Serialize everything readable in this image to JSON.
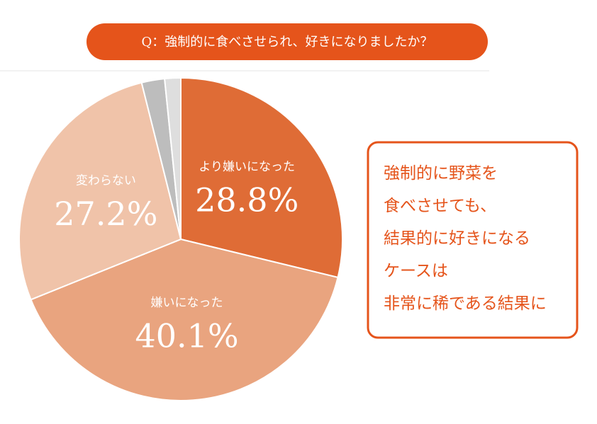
{
  "chart_data": {
    "type": "pie",
    "title": "Q：強制的に食べさせられ、好きになりましたか？",
    "categories": [
      "より嫌いになった",
      "嫌いになった",
      "変わらない",
      null,
      null
    ],
    "values": [
      28.8,
      40.1,
      27.2,
      2.3,
      1.6
    ],
    "value_labels": [
      "28.8%",
      "40.1%",
      "27.2%",
      null,
      null
    ],
    "colors": [
      "#df6c36",
      "#e9a47f",
      "#f0c3a9",
      "#bdbdbd",
      "#dedede"
    ]
  },
  "note": {
    "lines": [
      "強制的に野菜を",
      "食べさせても、",
      "結果的に好きになる",
      "ケースは",
      "非常に稀である結果に"
    ]
  }
}
